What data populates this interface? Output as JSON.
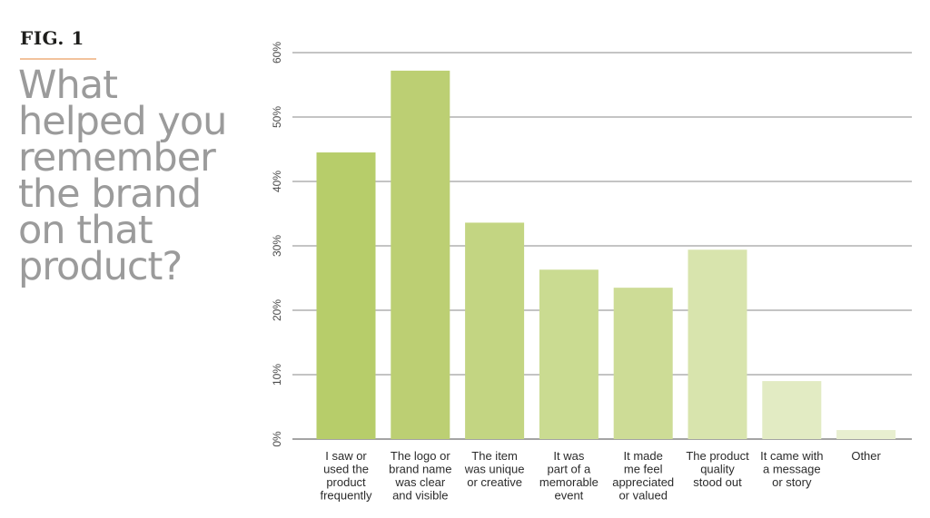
{
  "figure": {
    "label": "FIG. 1",
    "title_lines": [
      "What",
      "helped you",
      "remember",
      "the brand",
      "on that",
      "product?"
    ]
  },
  "chart_data": {
    "type": "bar",
    "title": "What helped you remember the brand on that product?",
    "categories": [
      [
        "I saw or",
        "used the",
        "product",
        "frequently"
      ],
      [
        "The logo or",
        "brand name",
        "was clear",
        "and visible"
      ],
      [
        "The item",
        "was unique",
        "or creative"
      ],
      [
        "It was",
        "part of a",
        "memorable",
        "event"
      ],
      [
        "It made",
        "me feel",
        "appreciated",
        "or valued"
      ],
      [
        "The product",
        "quality",
        "stood out"
      ],
      [
        "It came with",
        "a message",
        "or story"
      ],
      [
        "Other"
      ]
    ],
    "values": [
      44.5,
      57.2,
      33.6,
      26.3,
      23.5,
      29.4,
      9.0,
      1.4
    ],
    "colors": [
      "#b7cd6a",
      "#bccf73",
      "#c3d582",
      "#cadb91",
      "#cddc96",
      "#d8e4ad",
      "#e2ebc3",
      "#e8efd0"
    ],
    "ytick_labels": [
      "0%",
      "10%",
      "20%",
      "30%",
      "40%",
      "50%",
      "60%"
    ],
    "ylim": [
      0,
      60
    ],
    "grid": true,
    "legend": "none"
  }
}
